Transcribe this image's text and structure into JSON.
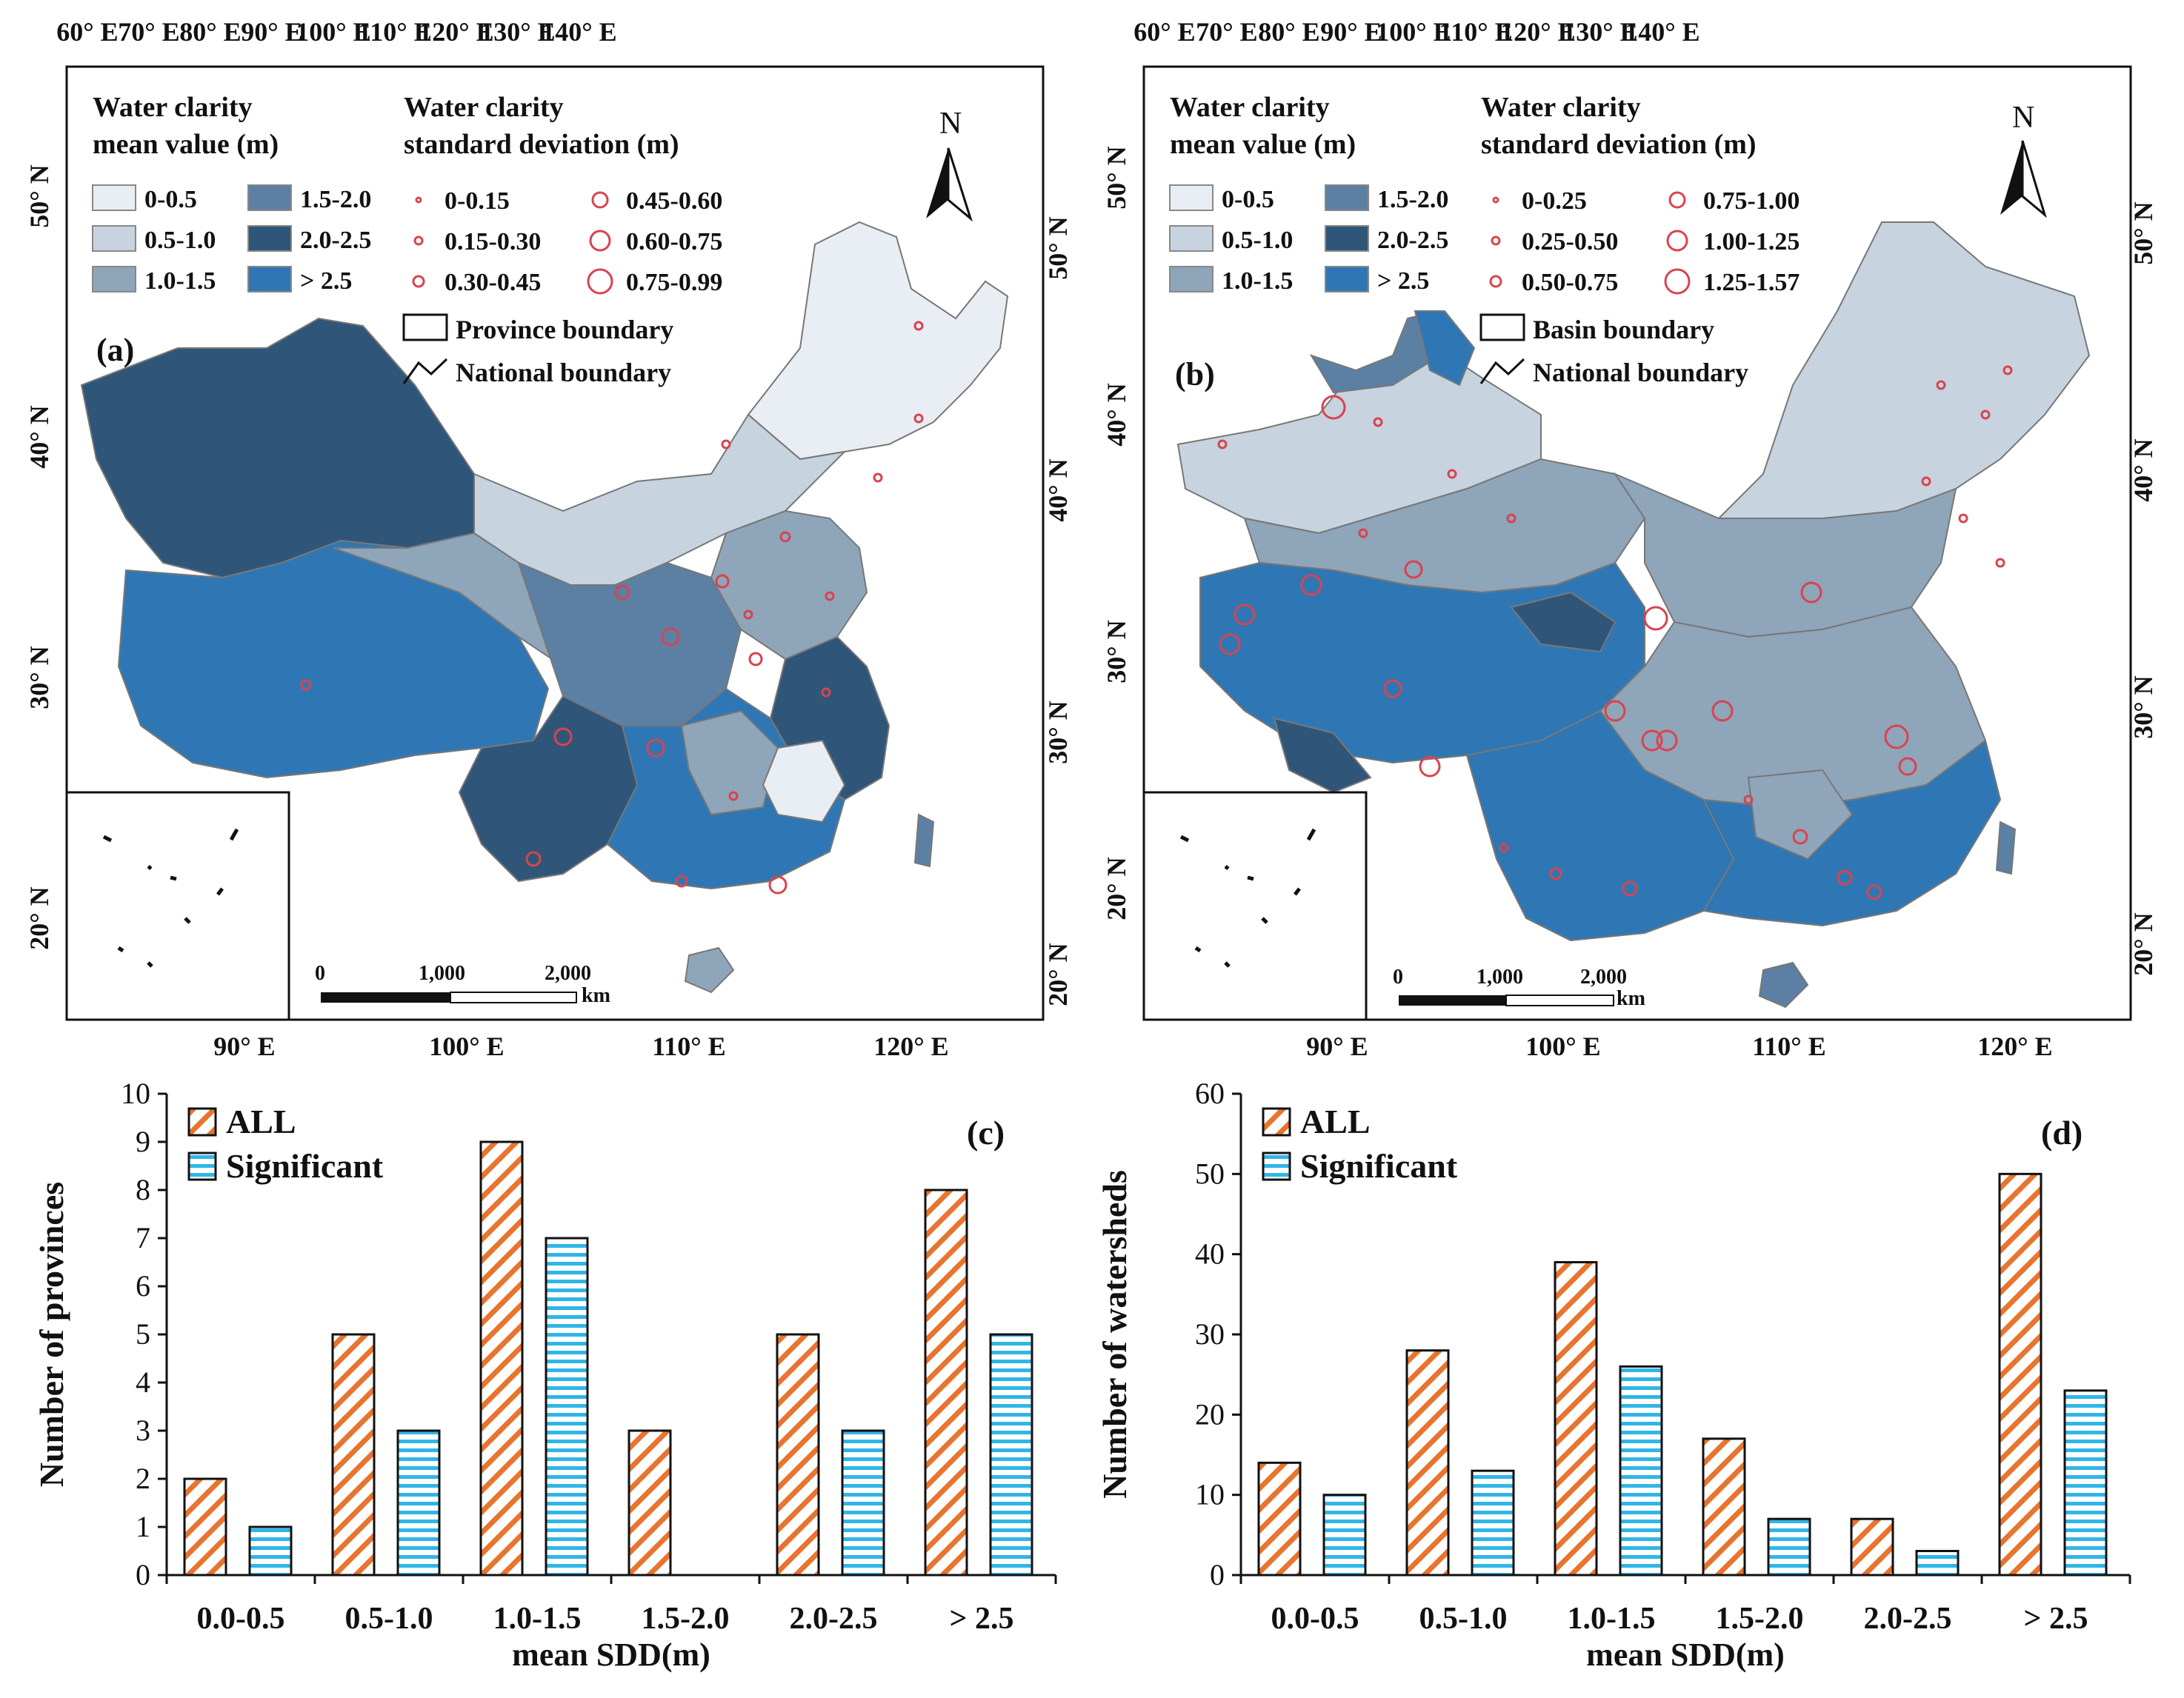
{
  "colors": {
    "class0": "#e8eef3",
    "class1": "#c7d3df",
    "class2": "#8fa5b9",
    "class3": "#5c80a3",
    "class4": "#2f5679",
    "class5": "#2f77b4",
    "circle": "#d9434f",
    "hatchAll": "#e8742e",
    "hatchSig": "#2fb6e6"
  },
  "maps": [
    {
      "panel": "(a)",
      "top_ticks": [
        "60° E",
        "70° E",
        "80° E",
        "90° E",
        "100° E",
        "110° E",
        "120° E",
        "130° E",
        "140° E"
      ],
      "bottom_ticks": [
        "90° E",
        "100° E",
        "110° E",
        "120° E"
      ],
      "left_ticks": [
        "50° N",
        "40° N",
        "30° N",
        "20° N"
      ],
      "right_ticks": [
        "50° N",
        "40° N",
        "30° N",
        "20° N"
      ],
      "legend_mean_title1": "Water clarity",
      "legend_mean_title2": "mean value (m)",
      "legend_mean": [
        "0-0.5",
        "0.5-1.0",
        "1.0-1.5",
        "1.5-2.0",
        "2.0-2.5",
        "> 2.5"
      ],
      "legend_sd_title1": "Water clarity",
      "legend_sd_title2": "standard deviation (m)",
      "legend_sd": [
        "0-0.15",
        "0.15-0.30",
        "0.30-0.45",
        "0.45-0.60",
        "0.60-0.75",
        "0.75-0.99"
      ],
      "boundary1": "Province boundary",
      "boundary2": "National boundary",
      "north": "N",
      "scale": [
        "0",
        "1,000",
        "2,000",
        "km"
      ]
    },
    {
      "panel": "(b)",
      "top_ticks": [
        "60° E",
        "70° E",
        "80° E",
        "90° E",
        "100° E",
        "110° E",
        "120° E",
        "130° E",
        "140° E"
      ],
      "bottom_ticks": [
        "90° E",
        "100° E",
        "110° E",
        "120° E"
      ],
      "left_ticks": [
        "50° N",
        "40° N",
        "30° N",
        "20° N"
      ],
      "right_ticks": [
        "50° N",
        "40° N",
        "30° N",
        "20° N"
      ],
      "legend_mean_title1": "Water clarity",
      "legend_mean_title2": "mean value (m)",
      "legend_mean": [
        "0-0.5",
        "0.5-1.0",
        "1.0-1.5",
        "1.5-2.0",
        "2.0-2.5",
        "> 2.5"
      ],
      "legend_sd_title1": "Water clarity",
      "legend_sd_title2": "standard deviation (m)",
      "legend_sd": [
        "0-0.25",
        "0.25-0.50",
        "0.50-0.75",
        "0.75-1.00",
        "1.00-1.25",
        "1.25-1.57"
      ],
      "boundary1": "Basin boundary",
      "boundary2": "National boundary",
      "north": "N",
      "scale": [
        "0",
        "1,000",
        "2,000",
        "km"
      ]
    }
  ],
  "chart_data": [
    {
      "type": "bar",
      "panel": "(c)",
      "categories": [
        "0.0-0.5",
        "0.5-1.0",
        "1.0-1.5",
        "1.5-2.0",
        "2.0-2.5",
        "> 2.5"
      ],
      "series": [
        {
          "name": "ALL",
          "values": [
            2,
            5,
            9,
            3,
            5,
            8
          ]
        },
        {
          "name": "Significant",
          "values": [
            1,
            3,
            7,
            0,
            3,
            5
          ]
        }
      ],
      "xlabel": "mean SDD(m)",
      "ylabel": "Number of provinces",
      "ylim": [
        0,
        10
      ],
      "yticks": [
        "0",
        "1",
        "2",
        "3",
        "4",
        "5",
        "6",
        "7",
        "8",
        "9",
        "10"
      ],
      "legend": "top-left"
    },
    {
      "type": "bar",
      "panel": "(d)",
      "categories": [
        "0.0-0.5",
        "0.5-1.0",
        "1.0-1.5",
        "1.5-2.0",
        "2.0-2.5",
        "> 2.5"
      ],
      "series": [
        {
          "name": "ALL",
          "values": [
            14,
            28,
            39,
            17,
            7,
            50
          ]
        },
        {
          "name": "Significant",
          "values": [
            10,
            13,
            26,
            7,
            3,
            23
          ]
        }
      ],
      "xlabel": "mean SDD(m)",
      "ylabel": "Number of watersheds",
      "ylim": [
        0,
        60
      ],
      "yticks": [
        "0",
        "10",
        "20",
        "30",
        "40",
        "50",
        "60"
      ],
      "legend": "top-left"
    }
  ]
}
